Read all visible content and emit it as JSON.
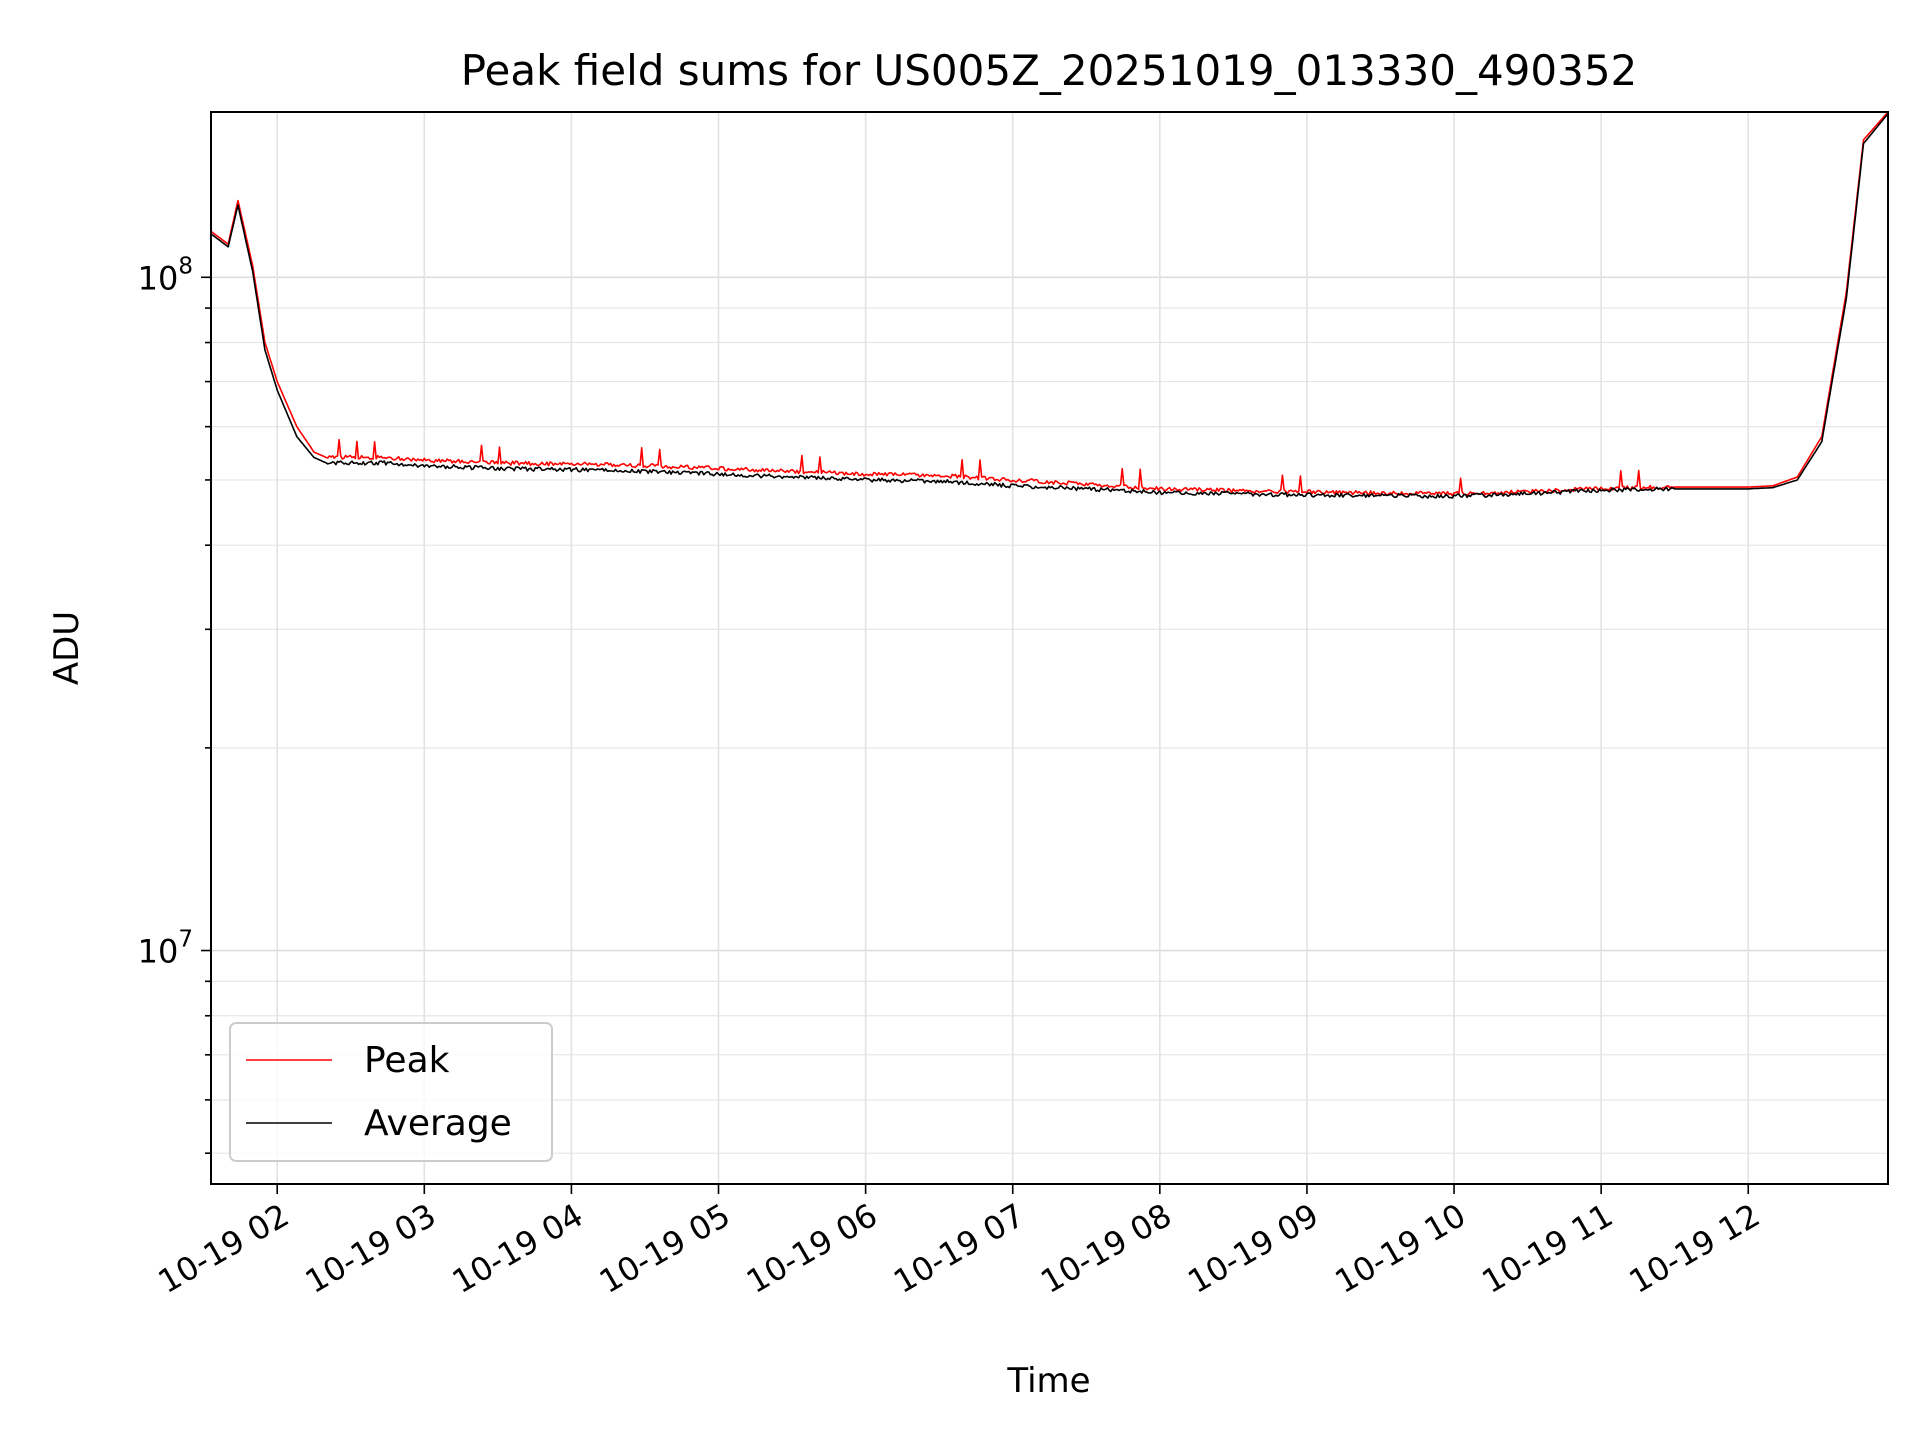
{
  "chart_data": {
    "type": "line",
    "title": "Peak field sums for US005Z_20251019_013330_490352",
    "xlabel": "Time",
    "ylabel": "ADU",
    "y_scale": "log",
    "grid": true,
    "legend_position": "lower-left",
    "x_range": [
      "10-19 01:33",
      "10-19 12:57"
    ],
    "ylim": [
      4500000,
      176000000
    ],
    "x_ticks": [
      "10-19 02",
      "10-19 03",
      "10-19 04",
      "10-19 05",
      "10-19 06",
      "10-19 07",
      "10-19 08",
      "10-19 09",
      "10-19 10",
      "10-19 11",
      "10-19 12"
    ],
    "y_tick_labels": [
      {
        "value": 100000000,
        "base": "10",
        "exp": "8"
      },
      {
        "value": 10000000,
        "base": "10",
        "exp": "7"
      }
    ],
    "x": [
      "10-19 01:33",
      "10-19 01:40",
      "10-19 01:44",
      "10-19 01:50",
      "10-19 01:55",
      "10-19 02:00",
      "10-19 02:08",
      "10-19 02:15",
      "10-19 02:20",
      "10-19 02:45",
      "10-19 03:00",
      "10-19 03:30",
      "10-19 04:00",
      "10-19 04:30",
      "10-19 05:00",
      "10-19 05:30",
      "10-19 06:00",
      "10-19 06:30",
      "10-19 07:00",
      "10-19 07:30",
      "10-19 08:00",
      "10-19 08:30",
      "10-19 09:00",
      "10-19 09:30",
      "10-19 10:00",
      "10-19 10:30",
      "10-19 11:00",
      "10-19 11:30",
      "10-19 11:50",
      "10-19 12:00",
      "10-19 12:10",
      "10-19 12:20",
      "10-19 12:30",
      "10-19 12:40",
      "10-19 12:47",
      "10-19 12:57"
    ],
    "series": [
      {
        "name": "Peak",
        "color": "#ff0000",
        "values": [
          117000000,
          112000000,
          130000000,
          104000000,
          80000000,
          70000000,
          60000000,
          55000000,
          54000000,
          54000000,
          53500000,
          53000000,
          52800000,
          52500000,
          52000000,
          51500000,
          51000000,
          50800000,
          50000000,
          49300000,
          48500000,
          48200000,
          48000000,
          47800000,
          47700000,
          48000000,
          48600000,
          48800000,
          48800000,
          48800000,
          49000000,
          50500000,
          58000000,
          95000000,
          160000000,
          176000000
        ]
      },
      {
        "name": "Average",
        "color": "#000000",
        "values": [
          116000000,
          111000000,
          128000000,
          102000000,
          78000000,
          68000000,
          58000000,
          54000000,
          53000000,
          53000000,
          52500000,
          52000000,
          51800000,
          51500000,
          51000000,
          50500000,
          50000000,
          49800000,
          49000000,
          48500000,
          47900000,
          47700000,
          47500000,
          47400000,
          47300000,
          47700000,
          48300000,
          48500000,
          48500000,
          48500000,
          48700000,
          50000000,
          57000000,
          93000000,
          158000000,
          175000000
        ]
      }
    ]
  }
}
